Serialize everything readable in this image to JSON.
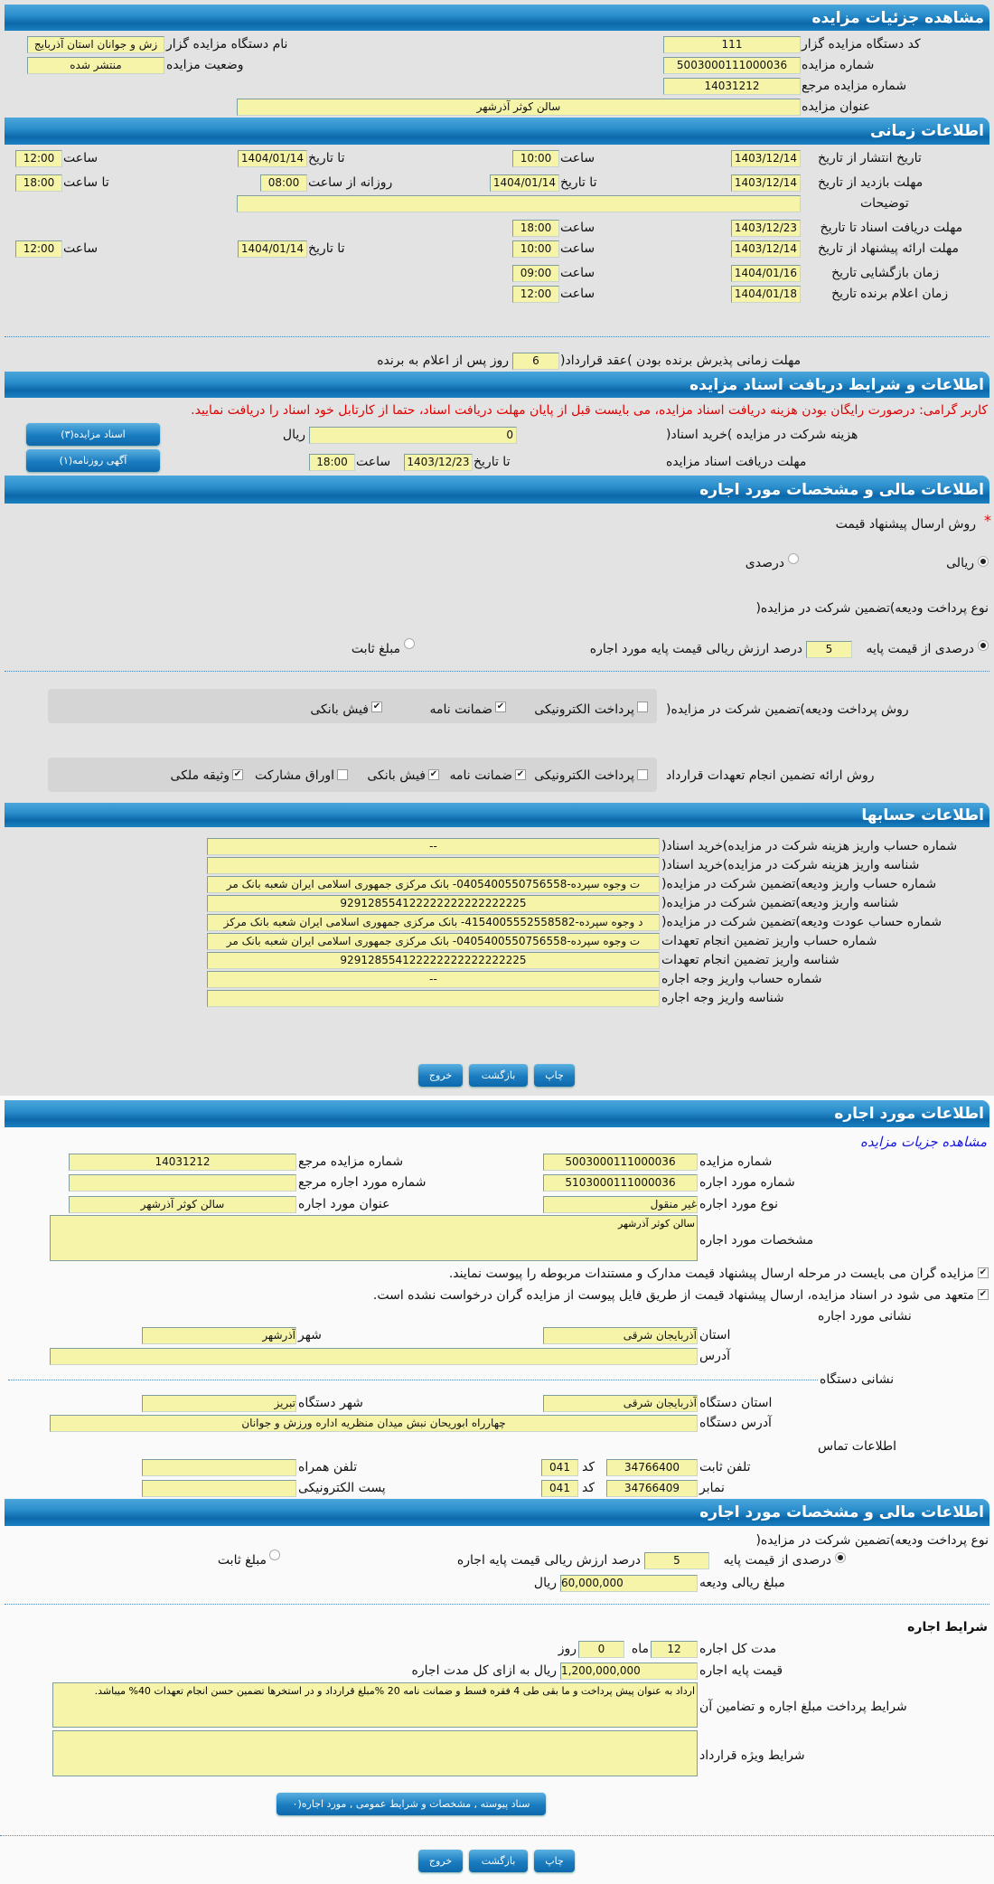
{
  "s1": {
    "title": "مشاهده جزئیات مزایده",
    "org_code_label": "کد دستگاه مزایده گزار",
    "org_code": "111",
    "org_name_label": "نام دستگاه مزایده گزار",
    "org_name": "زش و جوانان استان آذربایج",
    "number_label": "شماره مزایده",
    "number": "5003000111000036",
    "status_label": "وضعیت مزایده",
    "status": "منتشر شده",
    "ref_label": "شماره مزایده مرجع",
    "ref": "14031212",
    "subject_label": "عنوان مزایده",
    "subject": "سالن کوثر آذرشهر"
  },
  "time": {
    "title": "اطلاعات زمانی",
    "from_date": "از تاریخ",
    "to_date": "تا تاریخ",
    "date": "تاریخ",
    "hour": "ساعت",
    "to_hour": "تا ساعت",
    "daily_from": "روزانه از ساعت",
    "publish": {
      "label": "تاریخ انتشار",
      "from": "1403/12/14",
      "from_time": "10:00",
      "to": "1404/01/14",
      "to_time": "12:00"
    },
    "visit": {
      "label": "مهلت بازدید",
      "from": "1403/12/14",
      "to": "1404/01/14",
      "daily_from": "08:00",
      "daily_to": "18:00"
    },
    "notes_label": "توضیحات",
    "notes": "",
    "docs_deadline": {
      "label": "مهلت دریافت اسناد",
      "to": "1403/12/23",
      "time": "18:00"
    },
    "offer": {
      "label": "مهلت ارائه پیشنهاد",
      "from": "1403/12/14",
      "from_time": "10:00",
      "to": "1404/01/14",
      "to_time": "12:00"
    },
    "opening": {
      "label": "زمان بازگشایی",
      "date": "1404/01/16",
      "time": "09:00"
    },
    "winner": {
      "label": "زمان اعلام برنده",
      "date": "1404/01/18",
      "time": "12:00"
    }
  },
  "award": {
    "label": "مهلت زمانی پذیرش برنده بودن )عقد قرارداد(",
    "days": "6",
    "suffix": "روز پس از اعلام به برنده"
  },
  "docs": {
    "title": "اطلاعات و شرایط دریافت اسناد مزایده",
    "warning": "کاربر گرامی: درصورت رایگان بودن هزینه دریافت اسناد مزایده، می بایست قبل از پایان مهلت دریافت اسناد، حتما از کارتابل خود اسناد را دریافت نمایید.",
    "fee_label": "هزینه شرکت در مزایده )خرید اسناد(",
    "fee": "0",
    "currency": "ریال",
    "deadline_label": "مهلت دریافت اسناد مزایده",
    "to_label": "تا تاریخ",
    "to": "1403/12/23",
    "hour_label": "ساعت",
    "hour": "18:00",
    "docs_button": "اسناد مزایده(۳)",
    "ad_button": "آگهی روزنامه(۱)"
  },
  "fin": {
    "title": "اطلاعات مالی و مشخصات مورد اجاره",
    "method_label": "روش ارسال پیشنهاد قیمت",
    "required": "*",
    "rial": "ریالی",
    "percent": "درصدی",
    "method_selected": "ریالی",
    "deposit_type_label": "نوع پرداخت ودیعه)تضمین شرکت در مزایده(",
    "pct_base": "درصدی از قیمت پایه",
    "pct": "5",
    "pct_suffix": "درصد ارزش ریالی قیمت پایه مورد اجاره",
    "fixed": "مبلغ ثابت",
    "deposit_selected": "درصدی از قیمت پایه",
    "pay_label": "روش پرداخت ودیعه)تضمین شرکت در مزایده(",
    "pay_options": [
      {
        "label": "پرداخت الکترونیکی",
        "checked": false
      },
      {
        "label": "ضمانت نامه",
        "checked": true
      },
      {
        "label": "فیش بانکی",
        "checked": true
      }
    ],
    "guar_label": "روش ارائه تضمین انجام تعهدات قرارداد",
    "guar_options": [
      {
        "label": "پرداخت الکترونیکی",
        "checked": false
      },
      {
        "label": "ضمانت نامه",
        "checked": true
      },
      {
        "label": "فیش بانکی",
        "checked": true
      },
      {
        "label": "اوراق مشارکت",
        "checked": false
      },
      {
        "label": "وثیقه ملکی",
        "checked": true
      }
    ]
  },
  "accounts": {
    "title": "اطلاعات حسابها",
    "rows": [
      {
        "label": "شماره حساب واریز هزینه شرکت در مزایده)خرید اسناد(",
        "value": "--"
      },
      {
        "label": "شناسه واریز هزینه شرکت در مزایده)خرید اسناد(",
        "value": ""
      },
      {
        "label": "شماره حساب واریز ودیعه)تضمین شرکت در مزایده(",
        "value": "ت وجوه سپرده-0405400550756558- بانک مرکزی جمهوری اسلامی ایران شعبه بانک مر"
      },
      {
        "label": "شناسه واریز ودیعه)تضمین شرکت در مزایده(",
        "value": "929128554122222222222222225"
      },
      {
        "label": "شماره حساب عودت ودیعه)تضمین شرکت در مزایده(",
        "value": "د وجوه سپرده-4154005552558582- بانک مرکزی جمهوری اسلامی ایران شعبه بانک مرکز"
      },
      {
        "label": "شماره حساب واریز تضمین انجام تعهدات",
        "value": "ت وجوه سپرده-0405400550756558- بانک مرکزی جمهوری اسلامی ایران شعبه بانک مر"
      },
      {
        "label": "شناسه واریز تضمین انجام تعهدات",
        "value": "929128554122222222222222225"
      },
      {
        "label": "شماره حساب واریز وجه اجاره",
        "value": "--"
      },
      {
        "label": "شناسه واریز وجه اجاره",
        "value": ""
      }
    ]
  },
  "actions": {
    "print": "چاپ",
    "back": "بازگشت",
    "exit": "خروج"
  },
  "lease": {
    "title": "اطلاعات مورد اجاره",
    "link": "مشاهده جزیات مزایده",
    "number_label": "شماره مزایده",
    "number": "5003000111000036",
    "ref_label": "شماره مزایده مرجع",
    "ref": "14031212",
    "item_no_label": "شماره مورد اجاره",
    "item_no": "5103000111000036",
    "item_ref_label": "شماره مورد اجاره مرجع",
    "item_ref": "",
    "type_label": "نوع مورد اجاره",
    "type": "غیر منقول",
    "name_label": "عنوان مورد اجاره",
    "name": "سالن کوثر آذرشهر",
    "spec_label": "مشخصات مورد اجاره",
    "spec": "سالن کوثر آذرشهر",
    "check1": "مزایده گران می بایست در مرحله ارسال پیشنهاد قیمت مدارک و مستندات مربوطه را پیوست نمایند.",
    "check2": "متعهد می شود در اسناد مزایده، ارسال پیشنهاد قیمت از طریق فایل پیوست از مزایده گران درخواست نشده است.",
    "addr_title": "نشانی مورد اجاره",
    "province_label": "استان",
    "province": "آذربایجان شرقی",
    "city_label": "شهر",
    "city": "آذرشهر",
    "address_label": "آدرس",
    "address": "",
    "org_addr_title": "نشانی دستگاه",
    "org_province_label": "استان دستگاه",
    "org_province": "آذربایجان شرقی",
    "org_city_label": "شهر دستگاه",
    "org_city": "تبریز",
    "org_address_label": "آدرس دستگاه",
    "org_address": "چهارراه ابوریحان نبش میدان منظریه اداره ورزش و جوانان",
    "contact_title": "اطلاعات تماس",
    "phone_label": "تلفن ثابت",
    "phone": "34766400",
    "code_label": "کد",
    "phone_code": "041",
    "mobile_label": "تلفن همراه",
    "mobile": "",
    "fax_label": "نمابر",
    "fax": "34766409",
    "fax_code": "041",
    "email_label": "پست الکترونیکی",
    "email": ""
  },
  "lease_fin": {
    "title": "اطلاعات مالی و مشخصات مورد اجاره",
    "deposit_type_label": "نوع پرداخت ودیعه)تضمین شرکت در مزایده(",
    "pct_base": "درصدی از قیمت پایه",
    "pct": "5",
    "pct_suffix": "درصد ارزش ریالی قیمت پایه اجاره",
    "fixed": "مبلغ ثابت",
    "deposit_amount_label": "مبلغ ریالی ودیعه",
    "deposit_amount": "60,000,000",
    "currency": "ریال"
  },
  "lease_terms": {
    "title": "شرایط اجاره",
    "duration_label": "مدت کل اجاره",
    "months": "12",
    "month_label": "ماه",
    "days": "0",
    "day_label": "روز",
    "base_price_label": "قیمت پایه اجاره",
    "base_price": "1,200,000,000",
    "base_price_suffix": "ریال به ازای کل مدت اجاره",
    "payment_label": "شرایط پرداخت مبلغ اجاره و تضامین آن",
    "payment": "ارداد به عنوان پیش پرداخت و ما بقی طی 4 فقره قسط و ضمانت نامه 20 %مبلغ قرارداد و در استخرها تضمین حسن انجام تعهدات 40% میباشد.",
    "special_label": "شرایط ویژه قرارداد",
    "special": "",
    "attachments_button": "سناد پیوسته , مشخصات و شرایط عمومی , مورد اجاره(۰"
  }
}
